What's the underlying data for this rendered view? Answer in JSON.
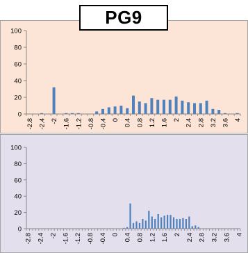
{
  "title": "PG9",
  "colors": {
    "bar": "#4f81bd",
    "top_panel": "#fce4d6",
    "bottom_panel": "#e4dfec",
    "axis": "#868686"
  },
  "chart_data": [
    {
      "type": "bar",
      "panel": "top",
      "title": "PG9",
      "xlabel": "",
      "ylabel": "",
      "ylim": [
        0,
        100
      ],
      "yticks": [
        "0",
        "20",
        "40",
        "60",
        "80",
        "100"
      ],
      "grid": false,
      "categories": [
        "-2.8",
        "-2.6",
        "-2.4",
        "-2.2",
        "-2",
        "-1.8",
        "-1.6",
        "-1.4",
        "-1.2",
        "-1",
        "-0.8",
        "-0.6",
        "-0.4",
        "-0.2",
        "0",
        "0.2",
        "0.4",
        "0.6",
        "0.8",
        "1",
        "1.2",
        "1.4",
        "1.6",
        "1.8",
        "2",
        "2.2",
        "2.4",
        "2.6",
        "2.8",
        "3",
        "3.2",
        "3.4",
        "3.6",
        "3.8",
        "4"
      ],
      "tick_labels": [
        "-2.8",
        "-2.4",
        "-2",
        "-1.6",
        "-1.2",
        "-0.8",
        "-0.4",
        "0",
        "0.4",
        "0.8",
        "1.2",
        "1.6",
        "2",
        "2.4",
        "2.8",
        "3.2",
        "3.6",
        "4"
      ],
      "values": [
        0,
        0,
        1,
        0,
        32,
        0,
        1,
        1,
        1,
        0,
        0,
        3,
        6,
        8,
        9,
        10,
        7,
        22,
        15,
        13,
        19,
        17,
        17,
        17,
        21,
        16,
        14,
        13,
        13,
        16,
        6,
        5,
        1,
        0,
        1
      ]
    },
    {
      "type": "bar",
      "panel": "bottom",
      "xlabel": "",
      "ylabel": "",
      "ylim": [
        0,
        100
      ],
      "yticks": [
        "0",
        "20",
        "40",
        "60",
        "80",
        "100"
      ],
      "grid": false,
      "categories": [
        "-2.8",
        "-2.7",
        "-2.6",
        "-2.5",
        "-2.4",
        "-2.3",
        "-2.2",
        "-2.1",
        "-2",
        "-1.9",
        "-1.8",
        "-1.7",
        "-1.6",
        "-1.5",
        "-1.4",
        "-1.3",
        "-1.2",
        "-1.1",
        "-1",
        "-0.9",
        "-0.8",
        "-0.7",
        "-0.6",
        "-0.5",
        "-0.4",
        "-0.3",
        "-0.2",
        "-0.1",
        "0",
        "0.1",
        "0.2",
        "0.3",
        "0.4",
        "0.5",
        "0.6",
        "0.7",
        "0.8",
        "0.9",
        "1",
        "1.1",
        "1.2",
        "1.3",
        "1.4",
        "1.5",
        "1.6",
        "1.7",
        "1.8",
        "1.9",
        "2",
        "2.1",
        "2.2",
        "2.3",
        "2.4",
        "2.5",
        "2.6",
        "2.7",
        "2.8",
        "2.9",
        "3",
        "3.1",
        "3.2",
        "3.3",
        "3.4",
        "3.5",
        "3.6",
        "3.7",
        "3.8",
        "3.9",
        "4"
      ],
      "tick_labels": [
        "-2.8",
        "-2.4",
        "-2",
        "-1.6",
        "-1.2",
        "-0.8",
        "-0.4",
        "0",
        "0.4",
        "0.8",
        "1.2",
        "1.6",
        "2",
        "2.4",
        "2.8",
        "3.2",
        "3.6",
        "4"
      ],
      "values": [
        0,
        0,
        0,
        0,
        0,
        0,
        0,
        0,
        0,
        0,
        0,
        0,
        0,
        0,
        0,
        0,
        0,
        0,
        0,
        0,
        0,
        0,
        0,
        0,
        0,
        0,
        0,
        0,
        0,
        0,
        0,
        1,
        2,
        31,
        7,
        9,
        7,
        12,
        10,
        22,
        15,
        12,
        18,
        14,
        16,
        17,
        17,
        14,
        12,
        12,
        13,
        12,
        15,
        3,
        4,
        2,
        0,
        0,
        0,
        0,
        0,
        0,
        0,
        0,
        0,
        0,
        0,
        0,
        0
      ]
    }
  ]
}
